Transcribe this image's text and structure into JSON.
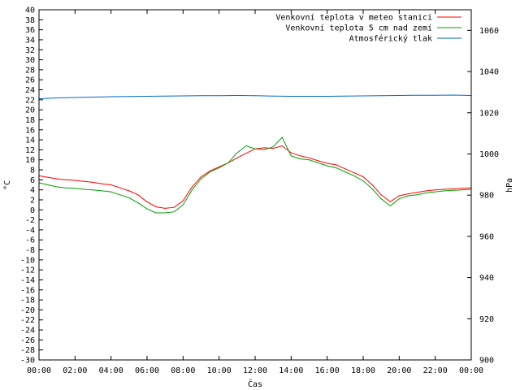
{
  "chart_data": {
    "type": "line",
    "xlabel": "Čas",
    "ylabel_left": "°C",
    "ylabel_right": "hPa",
    "x_unit": "hours",
    "xlim": [
      0,
      24
    ],
    "ylim_left": [
      -30,
      40
    ],
    "ylim_right": [
      900,
      1070
    ],
    "x_ticks": [
      "00:00",
      "02:00",
      "04:00",
      "06:00",
      "08:00",
      "10:00",
      "12:00",
      "14:00",
      "16:00",
      "18:00",
      "20:00",
      "22:00",
      "00:00"
    ],
    "y_left_ticks": [
      "40",
      "38",
      "36",
      "34",
      "32",
      "30",
      "28",
      "26",
      "24",
      "22",
      "20",
      "18",
      "16",
      "14",
      "12",
      "10",
      "8",
      "6",
      "4",
      "2",
      "0",
      "-2",
      "-4",
      "-6",
      "-8",
      "-10",
      "-12",
      "-14",
      "-16",
      "-18",
      "-20",
      "-22",
      "-24",
      "-26",
      "-28",
      "-30"
    ],
    "y_right_ticks": [
      "1060",
      "1040",
      "1020",
      "1000",
      "980",
      "960",
      "940",
      "920",
      "900"
    ],
    "grid": false,
    "legend_position": "top-right",
    "series": [
      {
        "name": "Venkovní teplota v meteo stanici",
        "color": "#ff0000",
        "axis": "left",
        "x": [
          0,
          0.5,
          1,
          1.5,
          2,
          2.5,
          3,
          3.5,
          4,
          4.5,
          5,
          5.5,
          6,
          6.5,
          7,
          7.5,
          8,
          8.5,
          9,
          9.5,
          10,
          10.5,
          11,
          11.5,
          12,
          12.5,
          13,
          13.5,
          14,
          14.5,
          15,
          15.5,
          16,
          16.5,
          17,
          17.5,
          18,
          18.5,
          19,
          19.5,
          20,
          20.5,
          21,
          21.5,
          22,
          22.5,
          23,
          23.5,
          24
        ],
        "y": [
          6.8,
          6.5,
          6.2,
          6.0,
          5.9,
          5.7,
          5.5,
          5.2,
          5.0,
          4.4,
          3.8,
          3.0,
          1.6,
          0.6,
          0.3,
          0.5,
          1.8,
          4.6,
          6.6,
          7.8,
          8.6,
          9.4,
          10.4,
          11.3,
          12.2,
          12.4,
          12.3,
          12.8,
          11.4,
          10.8,
          10.4,
          9.8,
          9.3,
          9.0,
          8.2,
          7.4,
          6.6,
          5.0,
          3.0,
          1.6,
          2.8,
          3.2,
          3.5,
          3.8,
          4.0,
          4.1,
          4.2,
          4.3,
          4.4
        ]
      },
      {
        "name": "Venkovní teplota 5 cm nad zemí",
        "color": "#00a000",
        "axis": "left",
        "x": [
          0,
          0.5,
          1,
          1.5,
          2,
          2.5,
          3,
          3.5,
          4,
          4.5,
          5,
          5.5,
          6,
          6.5,
          7,
          7.5,
          8,
          8.5,
          9,
          9.5,
          10,
          10.5,
          11,
          11.5,
          12,
          12.5,
          13,
          13.5,
          14,
          14.5,
          15,
          15.5,
          16,
          16.5,
          17,
          17.5,
          18,
          18.5,
          19,
          19.5,
          20,
          20.5,
          21,
          21.5,
          22,
          22.5,
          23,
          23.5,
          24
        ],
        "y": [
          5.4,
          5.0,
          4.6,
          4.4,
          4.3,
          4.1,
          4.0,
          3.8,
          3.6,
          3.0,
          2.4,
          1.4,
          0.2,
          -0.6,
          -0.6,
          -0.4,
          1.0,
          4.0,
          6.2,
          7.6,
          8.4,
          9.4,
          11.4,
          12.8,
          12.2,
          12.0,
          12.6,
          14.5,
          10.8,
          10.2,
          10.0,
          9.4,
          8.8,
          8.4,
          7.6,
          6.8,
          5.8,
          4.2,
          2.2,
          0.8,
          2.2,
          2.8,
          3.0,
          3.4,
          3.6,
          3.8,
          3.9,
          4.0,
          4.1
        ]
      },
      {
        "name": "Atmosférický tlak",
        "color": "#0066cc",
        "axis": "right",
        "x": [
          0,
          1,
          2,
          3,
          4,
          5,
          6,
          7,
          8,
          9,
          10,
          11,
          12,
          13,
          14,
          15,
          16,
          17,
          18,
          19,
          20,
          21,
          22,
          23,
          24
        ],
        "y": [
          1026.8,
          1027.2,
          1027.4,
          1027.6,
          1027.8,
          1027.9,
          1028.0,
          1028.1,
          1028.2,
          1028.3,
          1028.3,
          1028.4,
          1028.3,
          1028.1,
          1028.0,
          1028.0,
          1028.0,
          1028.1,
          1028.2,
          1028.3,
          1028.4,
          1028.5,
          1028.5,
          1028.6,
          1028.4
        ]
      }
    ]
  }
}
